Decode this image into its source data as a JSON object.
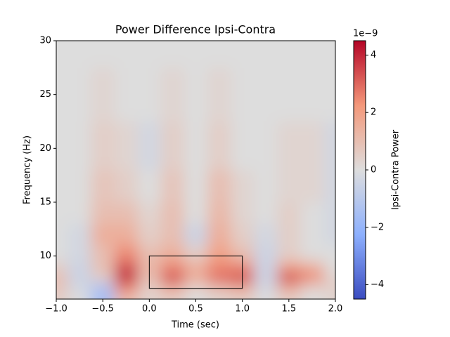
{
  "chart_data": {
    "type": "heatmap",
    "title": "Power Difference Ipsi-Contra",
    "x_label": "Time (sec)",
    "y_label": "Frequency (Hz)",
    "colorbar_label": "Ipsi-Contra Power",
    "colorbar_offset": "1e−9",
    "colormap": "coolwarm",
    "x": [
      -1,
      -0.75,
      -0.5,
      -0.25,
      0,
      0.25,
      0.5,
      0.75,
      1,
      1.25,
      1.5,
      1.75,
      2
    ],
    "y": [
      6,
      7,
      8,
      9,
      10,
      12,
      14,
      16,
      20,
      25,
      30
    ],
    "z": [
      [
        0.5,
        0,
        -1.5,
        1,
        0.3,
        0.5,
        0,
        0.3,
        0.5,
        0,
        0.5,
        0,
        0.3
      ],
      [
        0.8,
        -0.3,
        -1.5,
        2.5,
        0.5,
        1.5,
        0.3,
        1,
        1.5,
        -0.3,
        1.5,
        0.3,
        0.5
      ],
      [
        1,
        -0.5,
        0.5,
        4.2,
        1,
        3.5,
        1.5,
        3,
        3.5,
        -0.5,
        3.5,
        2.5,
        0.3
      ],
      [
        0.5,
        -0.5,
        1,
        3.5,
        1.2,
        2.5,
        1.5,
        2.5,
        2.5,
        -0.5,
        2,
        1.5,
        0
      ],
      [
        0,
        -0.3,
        1,
        2.5,
        1,
        1.5,
        0.5,
        2,
        1,
        -0.5,
        0.5,
        0,
        0
      ],
      [
        0,
        -0.3,
        1.5,
        1.5,
        0.5,
        1,
        -0.5,
        1.5,
        0.5,
        -0.3,
        0.5,
        0,
        -0.3
      ],
      [
        0,
        0,
        1,
        1,
        0.3,
        1,
        0,
        1.2,
        0.3,
        0,
        0.5,
        0,
        -0.3
      ],
      [
        0,
        0,
        0.8,
        0.5,
        0,
        0.8,
        0,
        1,
        0.3,
        0,
        0.3,
        0.3,
        -0.3
      ],
      [
        0,
        0,
        0.5,
        0.3,
        -0.3,
        0.5,
        0,
        0.5,
        0,
        0,
        0.3,
        0.3,
        -0.3
      ],
      [
        0,
        0,
        0.3,
        0,
        0,
        0.3,
        0,
        0.3,
        0,
        0,
        0,
        0,
        0
      ],
      [
        0,
        0,
        0,
        0,
        0,
        0,
        0,
        0,
        0,
        0,
        0,
        0,
        0
      ]
    ],
    "xlim": [
      -1,
      2
    ],
    "ylim": [
      6,
      30
    ],
    "clim": [
      -4.5,
      4.5
    ],
    "xticks": [
      {
        "value": -1,
        "label": "−1.0"
      },
      {
        "value": -0.5,
        "label": "−0.5"
      },
      {
        "value": 0,
        "label": "0.0"
      },
      {
        "value": 0.5,
        "label": "0.5"
      },
      {
        "value": 1,
        "label": "1.0"
      },
      {
        "value": 1.5,
        "label": "1.5"
      },
      {
        "value": 2,
        "label": "2.0"
      }
    ],
    "yticks": [
      10,
      15,
      20,
      25,
      30
    ],
    "cticks": [
      {
        "value": -4,
        "label": "−4"
      },
      {
        "value": -2,
        "label": "−2"
      },
      0,
      2,
      4
    ],
    "rectangle": {
      "x": [
        0,
        1
      ],
      "y": [
        7,
        10
      ],
      "color": "#000000"
    }
  }
}
